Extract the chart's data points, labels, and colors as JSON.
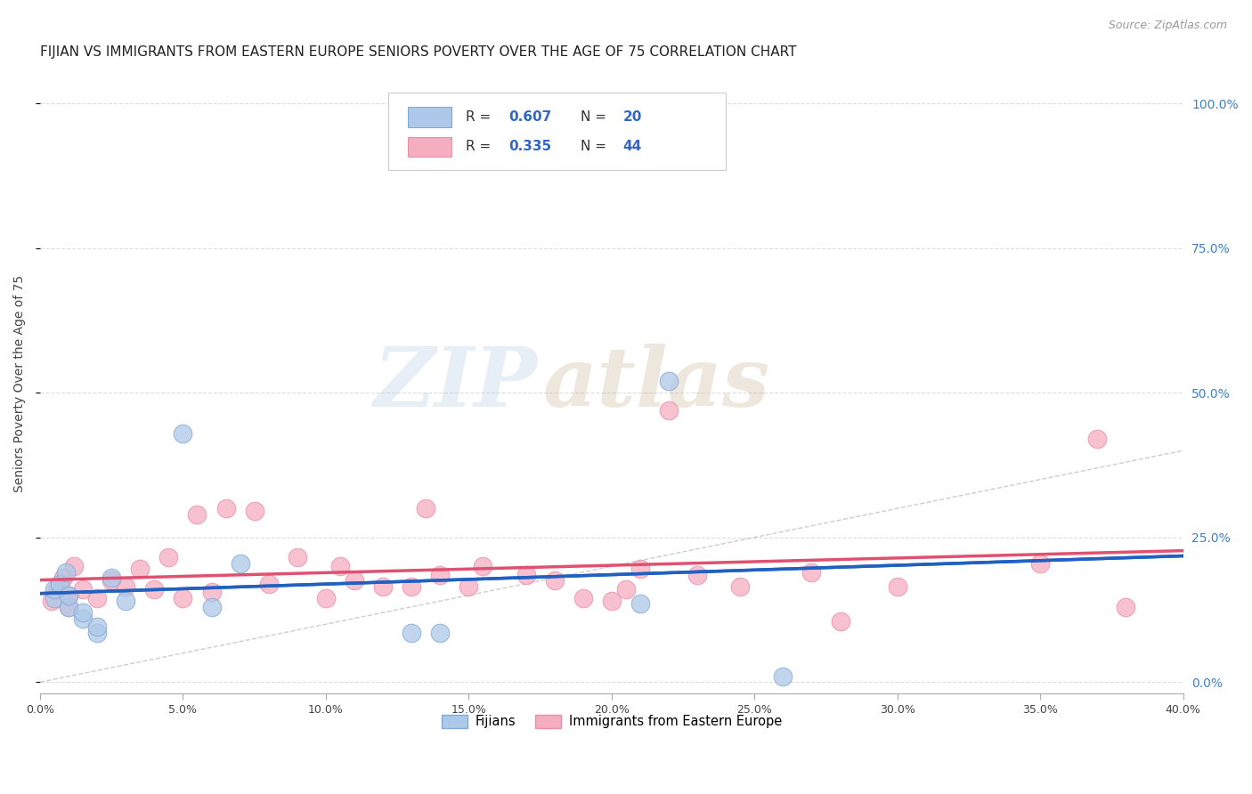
{
  "title": "FIJIAN VS IMMIGRANTS FROM EASTERN EUROPE SENIORS POVERTY OVER THE AGE OF 75 CORRELATION CHART",
  "source": "Source: ZipAtlas.com",
  "ylabel": "Seniors Poverty Over the Age of 75",
  "xlim": [
    0.0,
    0.4
  ],
  "ylim": [
    -0.02,
    1.05
  ],
  "fijian_R": 0.607,
  "fijian_N": 20,
  "eastern_europe_R": 0.335,
  "eastern_europe_N": 44,
  "fijian_color": "#adc8e8",
  "eastern_europe_color": "#f5adc0",
  "fijian_line_color": "#2060c0",
  "eastern_europe_line_color": "#e05070",
  "diagonal_color": "#c8c8c8",
  "background_color": "#ffffff",
  "grid_color": "#dddddd",
  "fijian_x": [
    0.005,
    0.005,
    0.007,
    0.009,
    0.01,
    0.01,
    0.015,
    0.015,
    0.02,
    0.02,
    0.025,
    0.03,
    0.05,
    0.06,
    0.07,
    0.13,
    0.14,
    0.21,
    0.22,
    0.26
  ],
  "fijian_y": [
    0.145,
    0.16,
    0.17,
    0.19,
    0.13,
    0.15,
    0.11,
    0.12,
    0.085,
    0.095,
    0.18,
    0.14,
    0.43,
    0.13,
    0.205,
    0.085,
    0.085,
    0.135,
    0.52,
    0.01
  ],
  "eastern_europe_x": [
    0.004,
    0.006,
    0.008,
    0.01,
    0.01,
    0.012,
    0.015,
    0.02,
    0.025,
    0.03,
    0.035,
    0.04,
    0.045,
    0.05,
    0.055,
    0.06,
    0.065,
    0.075,
    0.08,
    0.09,
    0.1,
    0.105,
    0.11,
    0.12,
    0.13,
    0.135,
    0.14,
    0.15,
    0.155,
    0.17,
    0.18,
    0.19,
    0.2,
    0.205,
    0.21,
    0.22,
    0.23,
    0.245,
    0.27,
    0.28,
    0.3,
    0.35,
    0.37,
    0.38
  ],
  "eastern_europe_y": [
    0.14,
    0.16,
    0.18,
    0.13,
    0.15,
    0.2,
    0.16,
    0.145,
    0.175,
    0.165,
    0.195,
    0.16,
    0.215,
    0.145,
    0.29,
    0.155,
    0.3,
    0.295,
    0.17,
    0.215,
    0.145,
    0.2,
    0.175,
    0.165,
    0.165,
    0.3,
    0.185,
    0.165,
    0.2,
    0.185,
    0.175,
    0.145,
    0.14,
    0.16,
    0.195,
    0.47,
    0.185,
    0.165,
    0.19,
    0.105,
    0.165,
    0.205,
    0.42,
    0.13
  ],
  "legend_label_fijian": "Fijians",
  "legend_label_eastern": "Immigrants from Eastern Europe",
  "watermark_zip": "ZIP",
  "watermark_atlas": "atlas",
  "title_fontsize": 11,
  "axis_label_fontsize": 10,
  "tick_fontsize": 9,
  "right_tick_color": "#4080c8",
  "source_color": "#999999"
}
